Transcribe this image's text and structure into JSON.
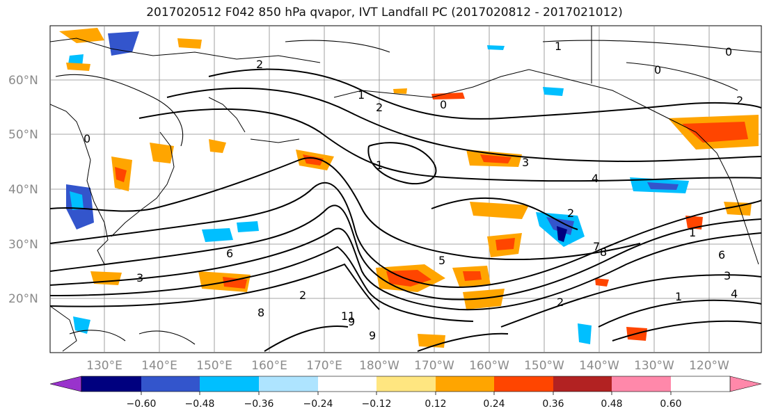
{
  "title": "2017020512 F042 850 hPa qvapor, IVT Landfall PC (2017020812 - 2017021012)",
  "map": {
    "lon_labels": [
      "130°E",
      "140°E",
      "150°E",
      "160°E",
      "170°E",
      "180°W",
      "170°W",
      "160°W",
      "150°W",
      "140°W",
      "130°W",
      "120°W"
    ],
    "lat_labels": [
      "60°N",
      "50°N",
      "40°N",
      "30°N",
      "20°N"
    ],
    "contour_labels": [
      "1",
      "2",
      "1",
      "2",
      "0",
      "0",
      "0",
      "2",
      "3",
      "4",
      "1",
      "2",
      "3",
      "5",
      "6",
      "7",
      "8",
      "9",
      "11",
      "2",
      "3",
      "1",
      "4",
      "6",
      "8",
      "9",
      "1",
      "0",
      "2"
    ]
  },
  "colorbar": {
    "colors": [
      "#9933cc",
      "#00007f",
      "#3355cc",
      "#00bfff",
      "#aee4ff",
      "#ffffff",
      "#ffe680",
      "#ffa500",
      "#ff4500",
      "#b22222",
      "#ff88aa"
    ],
    "tick_labels": [
      "−0.60",
      "−0.48",
      "−0.36",
      "−0.24",
      "−0.12",
      "0.12",
      "0.24",
      "0.36",
      "0.48",
      "0.60"
    ]
  }
}
